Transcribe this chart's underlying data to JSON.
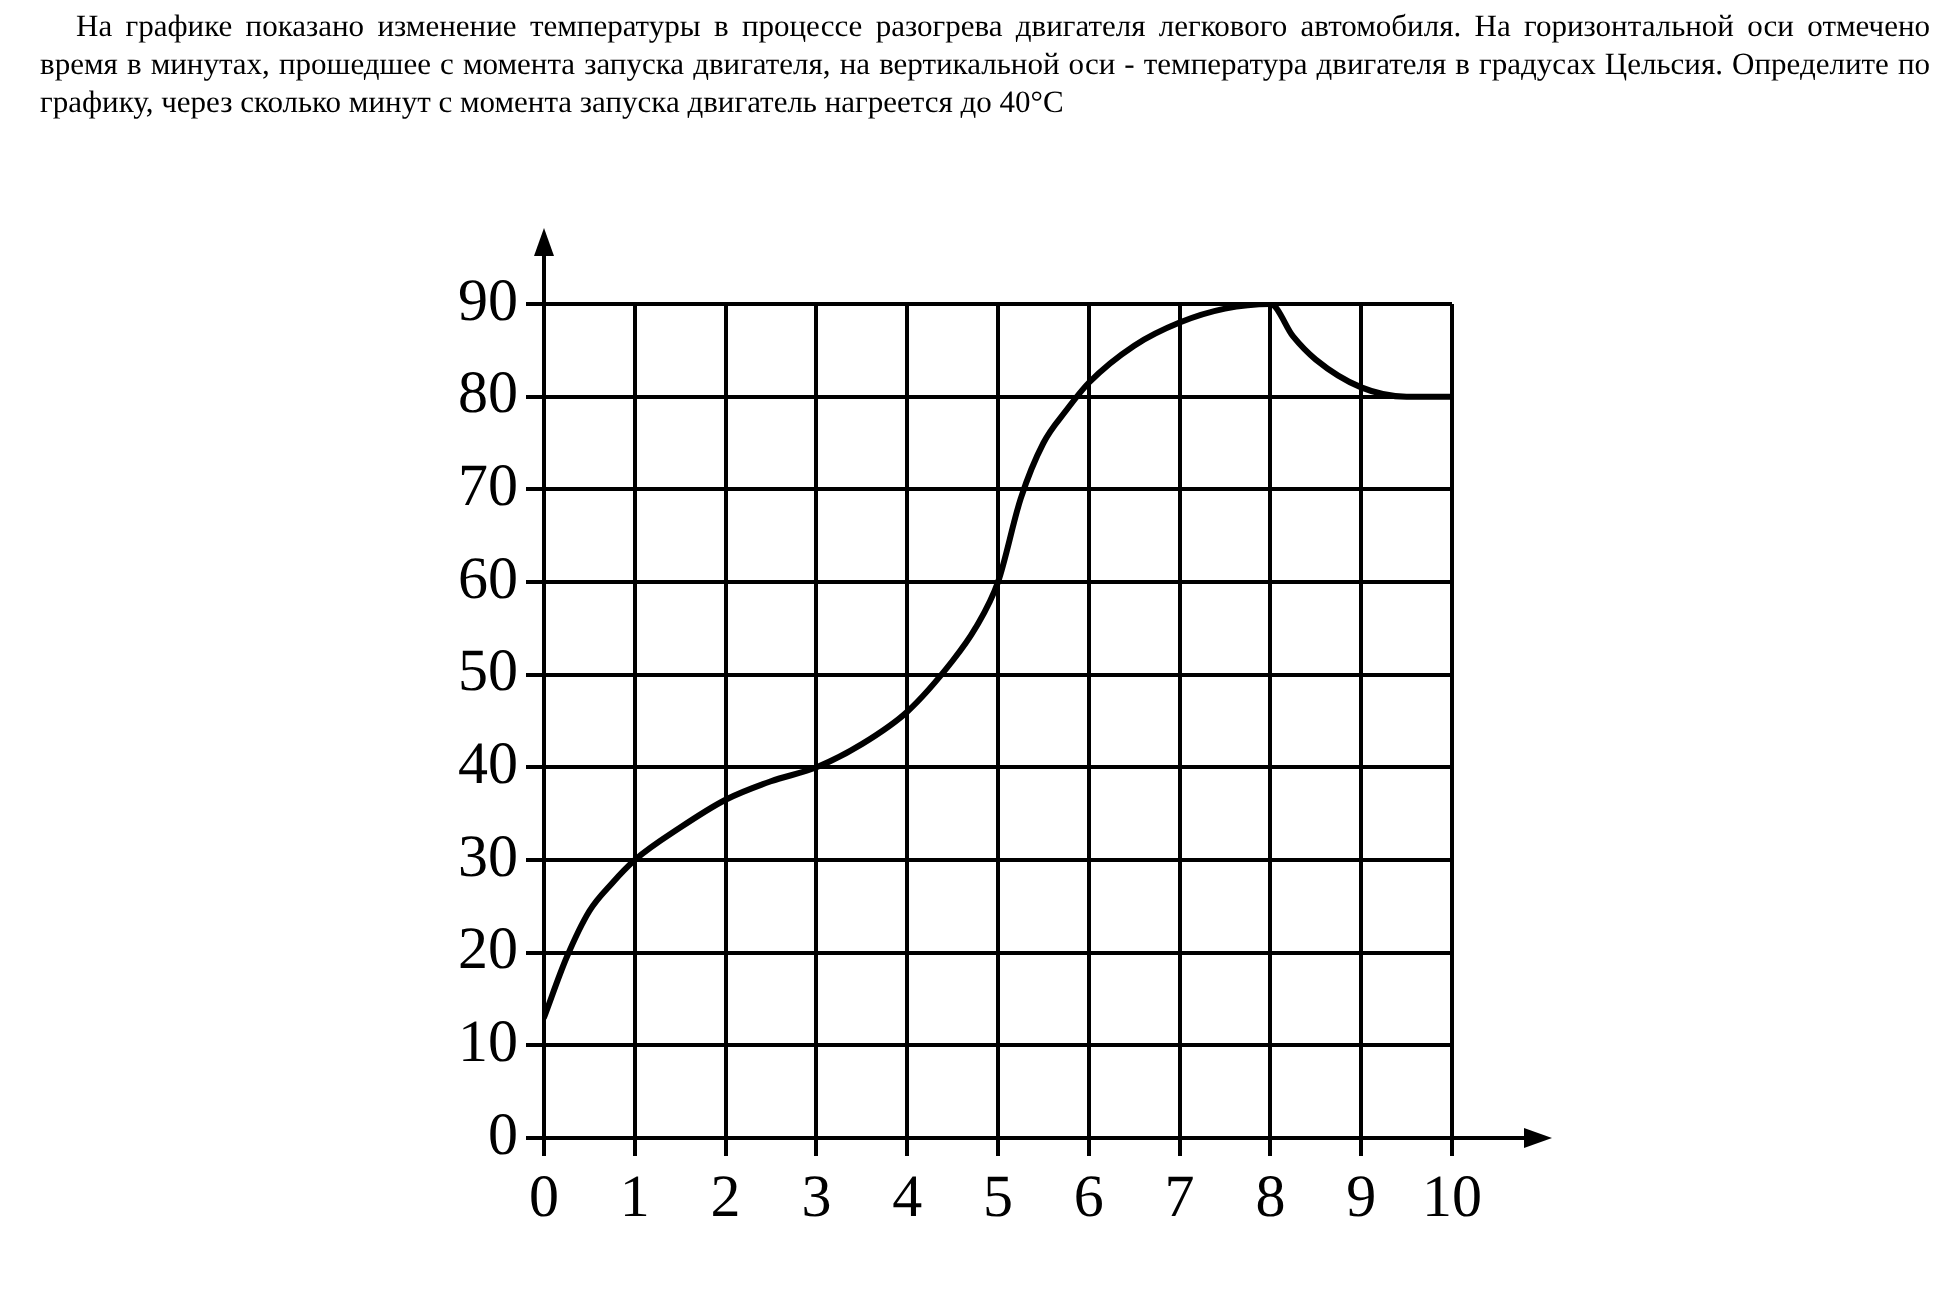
{
  "chart_data": {
    "type": "line",
    "title": "На графике показано изменение температуры в процессе разогрева двигателя легкового автомобиля. На горизонтальной оси отмечено время в минутах, прошедшее с момента запуска двигателя, на вертикальной оси - температура двигателя в градусах Цельсия. Определите по графику, через сколько минут с момента запуска двигатель нагреется до 40°C",
    "x": [
      0,
      0.25,
      0.5,
      0.75,
      1,
      1.5,
      2,
      2.5,
      3,
      3.5,
      4,
      4.5,
      4.75,
      5,
      5.25,
      5.5,
      5.75,
      6,
      6.5,
      7,
      7.5,
      8,
      8.25,
      8.5,
      9,
      9.5,
      10
    ],
    "series": [
      {
        "color": "#000000",
        "values": [
          13,
          19.5,
          24.5,
          27.5,
          30,
          33.5,
          36.5,
          38.5,
          40,
          42.5,
          46,
          51.5,
          55,
          60,
          69,
          75,
          78.5,
          81.5,
          85.5,
          88,
          89.5,
          90,
          86.5,
          84,
          81,
          80,
          80
        ]
      }
    ],
    "xlim": [
      0,
      10
    ],
    "xticks": [
      0,
      1,
      2,
      3,
      4,
      5,
      6,
      7,
      8,
      9,
      10
    ],
    "ylim": [
      0,
      90
    ],
    "yticks": [
      0,
      10,
      20,
      30,
      40,
      50,
      60,
      70,
      80,
      90
    ],
    "grid": true,
    "marker": "none",
    "line_style": "solid",
    "legend": false
  }
}
